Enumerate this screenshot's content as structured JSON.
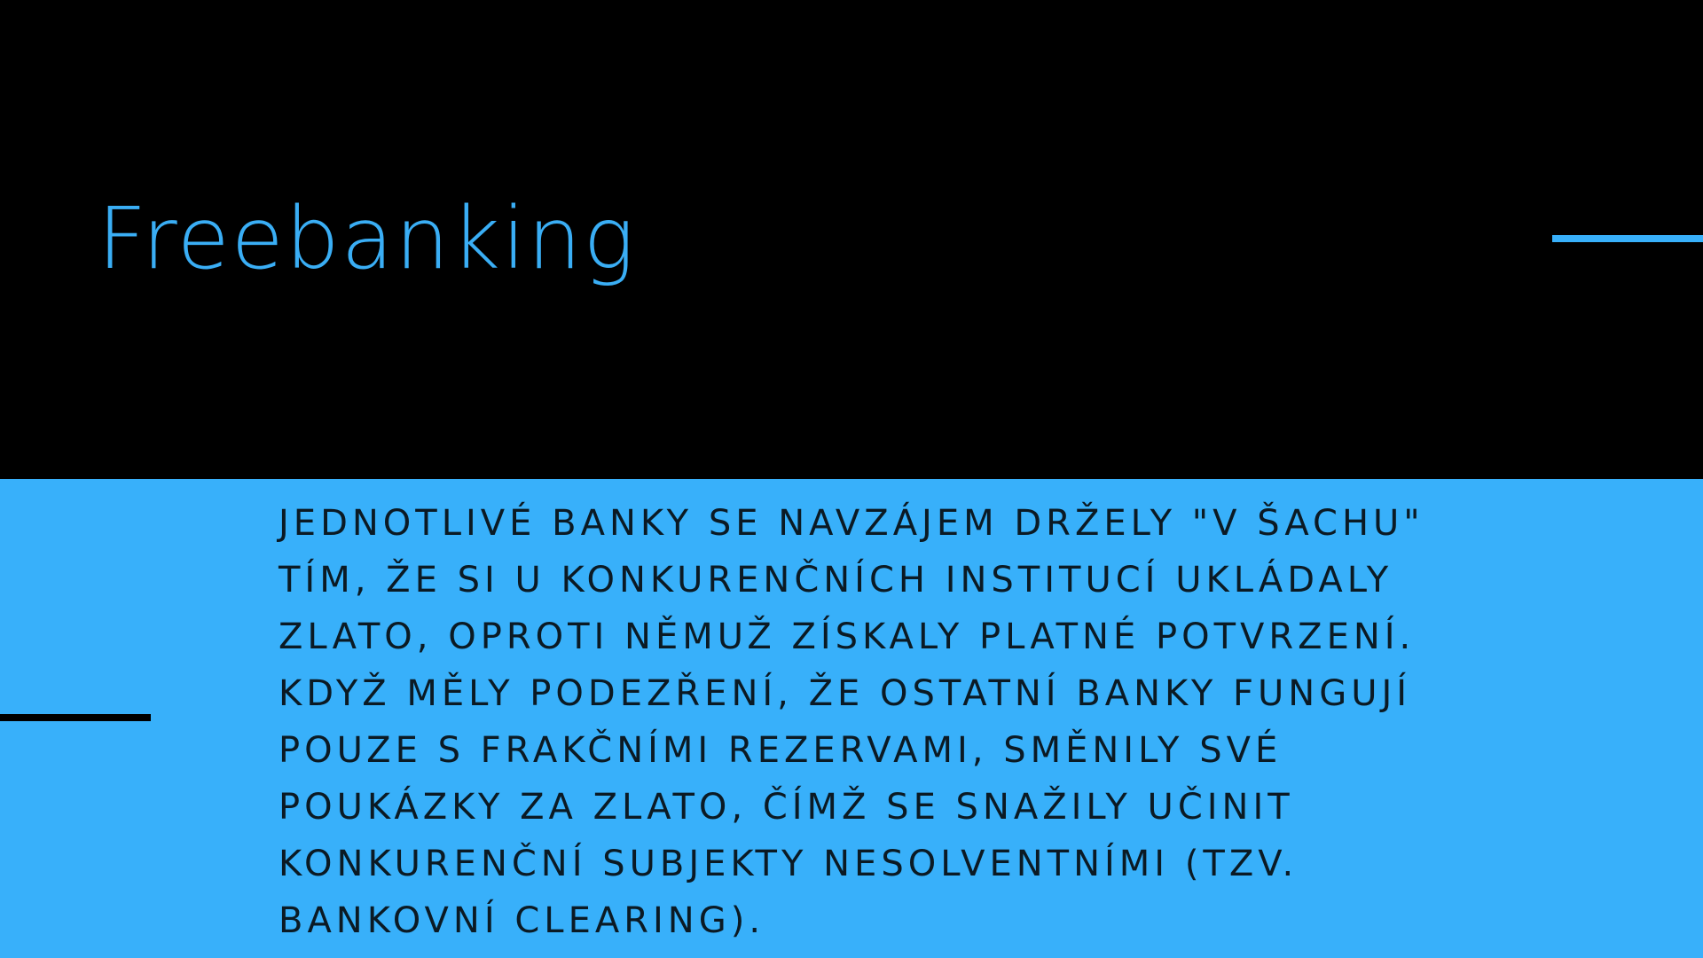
{
  "slide": {
    "title": "Freebanking",
    "body_lines": [
      "JEDNOTLIVÉ BANKY SE NAVZÁJEM DRŽELY \"V ŠACHU\"",
      "TÍM, ŽE SI U KONKURENČNÍCH INSTITUCÍ UKLÁDALY",
      "ZLATO, OPROTI NĚMUŽ ZÍSKALY PLATNÉ POTVRZENÍ.",
      "KDYŽ MĚLY PODEZŘENÍ, ŽE OSTATNÍ BANKY FUNGUJÍ",
      "POUZE S FRAKČNÍMI REZERVAMI, SMĚNILY SVÉ",
      "POUKÁZKY ZA ZLATO, ČÍMŽ SE SNAŽILY UČINIT",
      "KONKURENČNÍ SUBJEKTY NESOLVENTNÍMI (TZV.",
      "BANKOVNÍ CLEARING)."
    ]
  },
  "colors": {
    "top_background": "#000000",
    "bottom_background": "#38B0FA",
    "title_color": "#3AAEF5",
    "body_text_color": "#0B1A24",
    "top_accent_line": "#38B0FA",
    "bottom_accent_line": "#000000"
  }
}
